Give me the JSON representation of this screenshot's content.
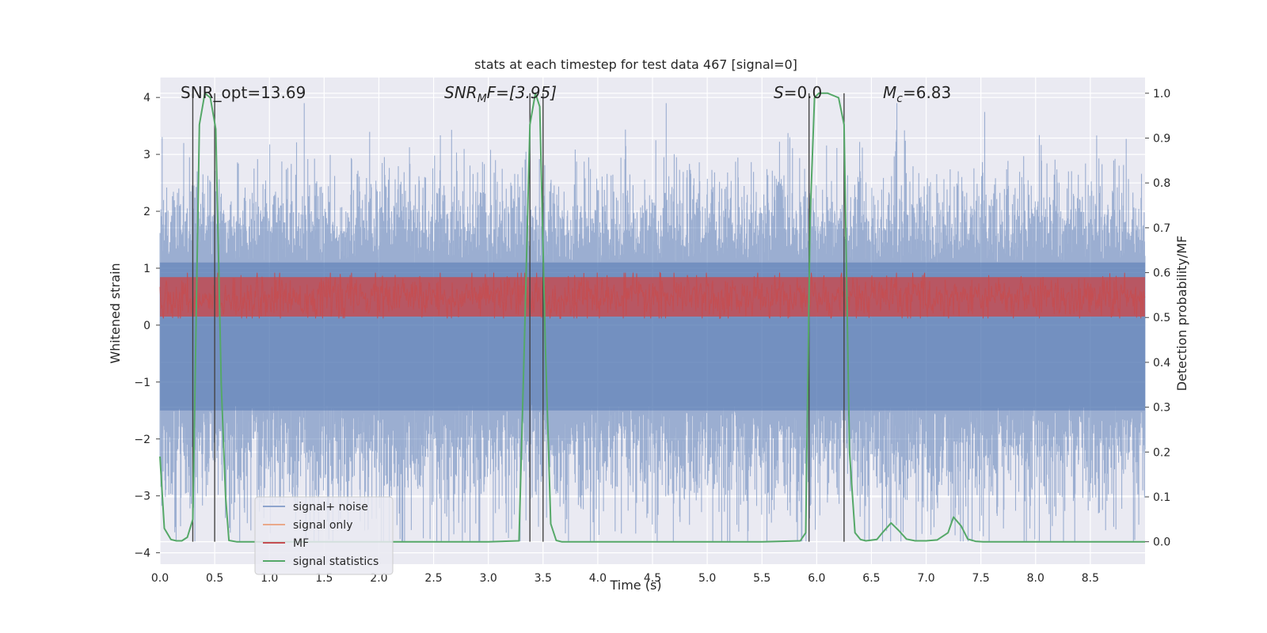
{
  "chart_data": {
    "type": "line",
    "title": "stats at each timestep for test data 467 [signal=0]",
    "xlabel": "Time (s)",
    "ylabel": "Whitened strain",
    "ylabel_right": "Detection probability/MF",
    "xlim": [
      0,
      9.0
    ],
    "ylim": [
      -4.2,
      4.35
    ],
    "ylim_right": [
      -0.05,
      1.035
    ],
    "x_ticks": [
      "0.0",
      "0.5",
      "1.0",
      "1.5",
      "2.0",
      "2.5",
      "3.0",
      "3.5",
      "4.0",
      "4.5",
      "5.0",
      "5.5",
      "6.0",
      "6.5",
      "7.0",
      "7.5",
      "8.0",
      "8.5"
    ],
    "y_ticks": [
      "4",
      "3",
      "2",
      "1",
      "0",
      "−1",
      "−2",
      "−3",
      "−4"
    ],
    "y_ticks_right": [
      "1.0",
      "0.9",
      "0.8",
      "0.7",
      "0.6",
      "0.5",
      "0.4",
      "0.3",
      "0.2",
      "0.1",
      "0.0"
    ],
    "grid": true,
    "legend_position": "lower-left",
    "legend": [
      "signal+ noise",
      "signal only",
      "MF",
      "signal statistics"
    ],
    "annotations": {
      "snr_opt": "SNR_opt=13.69",
      "snr_mf_main": "SNR",
      "snr_mf_sub": "M",
      "snr_mf_rest": "F=[3.95]",
      "s_main": "S",
      "s_rest": "=0.0",
      "mc_main": "M",
      "mc_sub": "c",
      "mc_rest": "=6.83"
    },
    "vertical_lines": [
      0.3,
      0.5,
      3.38,
      3.5,
      5.93,
      6.25
    ],
    "series": [
      {
        "name": "signal statistics",
        "axis": "right",
        "x": [
          0.0,
          0.04,
          0.1,
          0.15,
          0.2,
          0.25,
          0.3,
          0.36,
          0.41,
          0.46,
          0.51,
          0.56,
          0.6,
          0.63,
          0.7,
          0.8,
          1.0,
          2.0,
          3.0,
          3.28,
          3.33,
          3.38,
          3.43,
          3.47,
          3.52,
          3.57,
          3.62,
          3.67,
          4.0,
          5.0,
          5.5,
          5.85,
          5.9,
          5.94,
          5.98,
          6.02,
          6.1,
          6.2,
          6.25,
          6.3,
          6.35,
          6.4,
          6.45,
          6.55,
          6.6,
          6.68,
          6.75,
          6.82,
          6.9,
          7.0,
          7.1,
          7.2,
          7.25,
          7.32,
          7.38,
          7.45,
          7.52,
          7.6,
          8.0,
          8.5,
          9.0
        ],
        "y": [
          0.19,
          0.03,
          0.005,
          0.002,
          0.002,
          0.01,
          0.05,
          0.93,
          1.0,
          0.99,
          0.92,
          0.35,
          0.1,
          0.003,
          0.0,
          0.0,
          0.0,
          0.0,
          0.0,
          0.002,
          0.45,
          0.93,
          1.0,
          0.97,
          0.45,
          0.04,
          0.003,
          0.0,
          0.0,
          0.0,
          0.0,
          0.002,
          0.02,
          0.72,
          0.99,
          1.0,
          1.0,
          0.99,
          0.93,
          0.2,
          0.02,
          0.005,
          0.002,
          0.005,
          0.02,
          0.042,
          0.025,
          0.006,
          0.002,
          0.002,
          0.004,
          0.02,
          0.055,
          0.035,
          0.006,
          0.001,
          0.0,
          0.0,
          0.0,
          0.0,
          0.0
        ]
      }
    ],
    "noise_description_series": [
      "signal+ noise",
      "MF"
    ],
    "colors": {
      "background": "#eaeaf2",
      "grid": "#ffffff",
      "signal_noise": "#4c72b0",
      "signal_only": "#dd8452",
      "mf": "#c44e52",
      "signal_statistics": "#55a868",
      "vline": "#444444"
    }
  }
}
